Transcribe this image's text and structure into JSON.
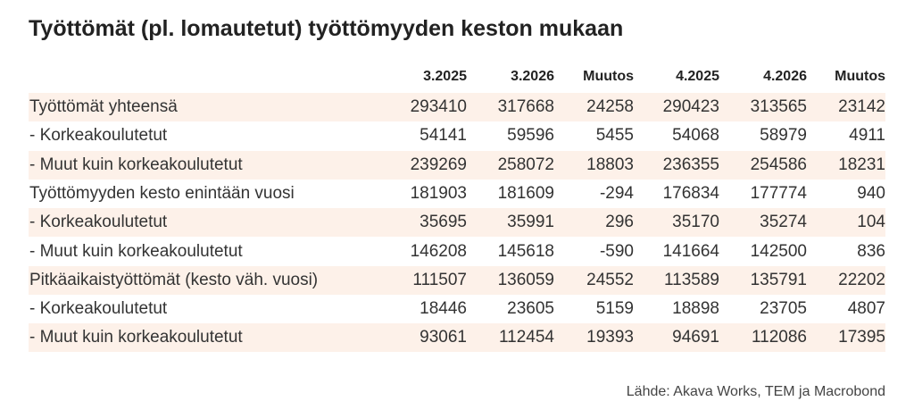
{
  "title": "Työttömät (pl. lomautetut) työttömyyden keston mukaan",
  "table": {
    "header": [
      "3.2025",
      "3.2026",
      "Muutos",
      "4.2025",
      "4.2026",
      "Muutos"
    ],
    "rows": [
      [
        "Työttömät yhteensä",
        293410,
        317668,
        24258,
        290423,
        313565,
        23142
      ],
      [
        "- Korkeakoulutetut",
        54141,
        59596,
        5455,
        54068,
        58979,
        4911
      ],
      [
        "- Muut kuin korkeakoulutetut",
        239269,
        258072,
        18803,
        236355,
        254586,
        18231
      ],
      [
        "Työttömyyden kesto enintään vuosi",
        181903,
        181609,
        -294,
        176834,
        177774,
        940
      ],
      [
        "- Korkeakoulutetut",
        35695,
        35991,
        296,
        35170,
        35274,
        104
      ],
      [
        "- Muut kuin korkeakoulutetut",
        146208,
        145618,
        -590,
        141664,
        142500,
        836
      ],
      [
        "Pitkäaikaistyöttömät (kesto väh. vuosi)",
        111507,
        136059,
        24552,
        113589,
        135791,
        22202
      ],
      [
        "- Korkeakoulutetut",
        18446,
        23605,
        5159,
        18898,
        23705,
        4807
      ],
      [
        "- Muut kuin korkeakoulutetut",
        93061,
        112454,
        19393,
        94691,
        112086,
        17395
      ]
    ]
  },
  "source": "Lähde: Akava Works, TEM ja Macrobond"
}
